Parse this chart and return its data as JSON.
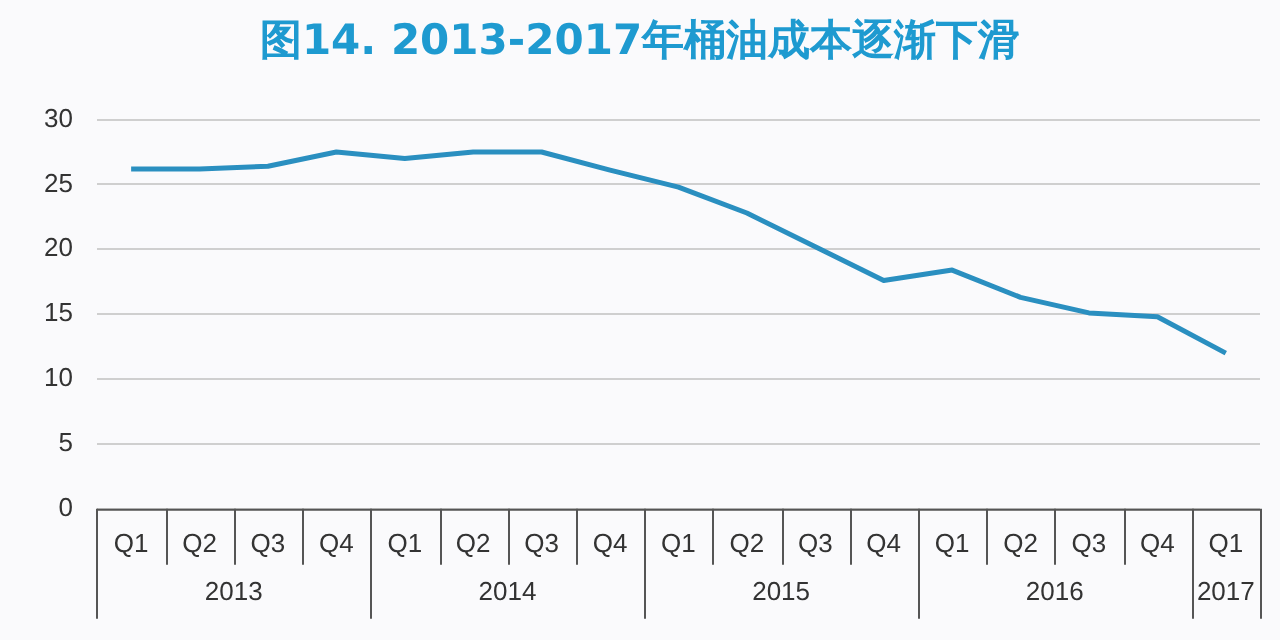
{
  "chart_data": {
    "type": "line",
    "title": "图14. 2013-2017年桶油成本逐渐下滑",
    "categories": [
      "Q1",
      "Q2",
      "Q3",
      "Q4",
      "Q1",
      "Q2",
      "Q3",
      "Q4",
      "Q1",
      "Q2",
      "Q3",
      "Q4",
      "Q1",
      "Q2",
      "Q3",
      "Q4",
      "Q1"
    ],
    "series": [
      {
        "color": "#2a8fc0",
        "values": [
          26.2,
          26.2,
          26.4,
          27.5,
          27.0,
          27.5,
          27.5,
          26.1,
          24.8,
          22.8,
          20.2,
          17.6,
          18.4,
          16.3,
          15.1,
          14.8,
          12.0
        ]
      }
    ],
    "ylim": [
      0,
      30
    ],
    "yticks": [
      0,
      5,
      10,
      15,
      20,
      25,
      30
    ],
    "grid": "y",
    "legend": false,
    "marker": "none",
    "line_style": "solid",
    "annotations": [
      "2013",
      "2014",
      "2015",
      "2016",
      "2017"
    ]
  }
}
